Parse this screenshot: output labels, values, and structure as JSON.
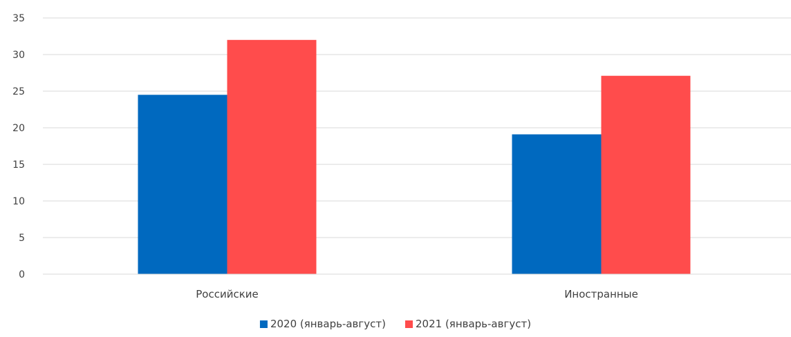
{
  "chart_data": {
    "type": "bar",
    "title": "",
    "xlabel": "",
    "ylabel": "",
    "categories": [
      "Российские",
      "Иностранные"
    ],
    "series": [
      {
        "name": "2020 (январь-август)",
        "color": "#0069BF",
        "values": [
          24.5,
          19.1
        ]
      },
      {
        "name": "2021 (январь-август)",
        "color": "#FF4C4C",
        "values": [
          32,
          27.1
        ]
      }
    ],
    "ylim": [
      0,
      35
    ],
    "yticks": [
      0,
      5,
      10,
      15,
      20,
      25,
      30,
      35
    ],
    "grid": true,
    "legend_position": "bottom"
  }
}
